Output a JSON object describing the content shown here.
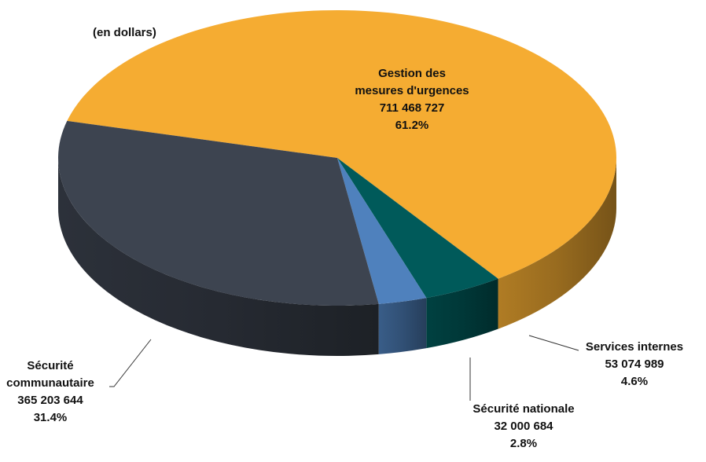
{
  "chart_data": {
    "type": "pie",
    "style": "3d",
    "unit_label": "(en dollars)",
    "colors": {
      "Gestion des mesures d'urgences": "#F5AC32",
      "Services internes": "#005A5A",
      "Sécurité nationale": "#4F81BD",
      "Sécurité communautaire": "#3D4450"
    },
    "slices": [
      {
        "name": "Gestion des mesures d'urgences",
        "label_lines": [
          "Gestion des",
          "mesures d'urgences"
        ],
        "value": "711 468 727",
        "percent": "61.2%",
        "pct": 61.2
      },
      {
        "name": "Services internes",
        "label_lines": [
          "Services internes"
        ],
        "value": "53 074 989",
        "percent": "4.6%",
        "pct": 4.6
      },
      {
        "name": "Sécurité nationale",
        "label_lines": [
          "Sécurité nationale"
        ],
        "value": "32 000 684",
        "percent": "2.8%",
        "pct": 2.8
      },
      {
        "name": "Sécurité communautaire",
        "label_lines": [
          "Sécurité",
          "communautaire"
        ],
        "value": "365 203 644",
        "percent": "31.4%",
        "pct": 31.4
      }
    ]
  }
}
